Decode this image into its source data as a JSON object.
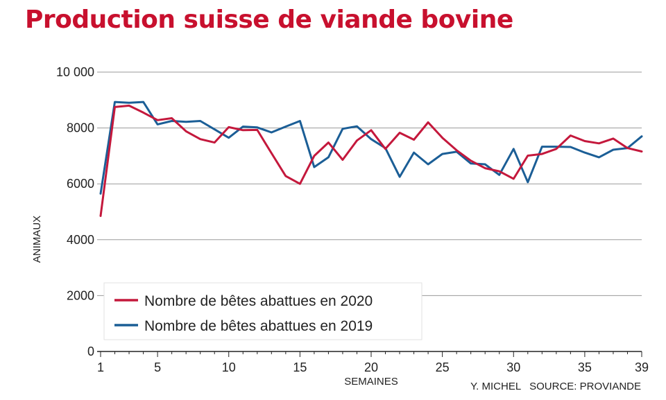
{
  "title": "Production suisse de viande bovine",
  "chart_data": {
    "type": "line",
    "title": "Production suisse de viande bovine",
    "xlabel": "SEMAINES",
    "ylabel": "ANIMAUX",
    "credit": "Y. MICHEL   SOURCE: PROVIANDE",
    "xlim": [
      1,
      39
    ],
    "ylim": [
      0,
      10000
    ],
    "x_ticks": [
      1,
      5,
      10,
      15,
      20,
      25,
      30,
      35,
      39
    ],
    "x_tick_labels": [
      "1",
      "5",
      "10",
      "15",
      "20",
      "25",
      "30",
      "35",
      "39"
    ],
    "y_ticks": [
      0,
      2000,
      4000,
      6000,
      8000,
      10000
    ],
    "y_tick_labels": [
      "0",
      "2000",
      "4000",
      "6000",
      "8000",
      "10 000"
    ],
    "grid": true,
    "legend_position": "bottom-left",
    "x": [
      1,
      2,
      3,
      4,
      5,
      6,
      7,
      8,
      9,
      10,
      11,
      12,
      13,
      14,
      15,
      16,
      17,
      18,
      19,
      20,
      21,
      22,
      23,
      24,
      25,
      26,
      27,
      28,
      29,
      30,
      31,
      32,
      33,
      34,
      35,
      36,
      37,
      38,
      39
    ],
    "series": [
      {
        "name": "Nombre de bêtes abattues en 2020",
        "color": "#c4183c",
        "values": [
          4850,
          8750,
          8800,
          8550,
          8280,
          8350,
          7880,
          7600,
          7480,
          8030,
          7920,
          7930,
          7100,
          6280,
          6000,
          7000,
          7480,
          6860,
          7550,
          7920,
          7250,
          7830,
          7580,
          8200,
          7650,
          7200,
          6830,
          6560,
          6450,
          6180,
          7010,
          7070,
          7250,
          7730,
          7530,
          7450,
          7620,
          7280,
          7160
        ]
      },
      {
        "name": "Nombre de bêtes abattues en 2019",
        "color": "#1b5e96",
        "values": [
          5650,
          8930,
          8900,
          8930,
          8130,
          8250,
          8220,
          8250,
          7950,
          7650,
          8050,
          8020,
          7840,
          8050,
          8250,
          6600,
          6950,
          7970,
          8060,
          7600,
          7280,
          6250,
          7120,
          6700,
          7070,
          7150,
          6730,
          6700,
          6320,
          7250,
          6060,
          7330,
          7330,
          7320,
          7120,
          6950,
          7220,
          7280,
          7700
        ]
      }
    ]
  }
}
